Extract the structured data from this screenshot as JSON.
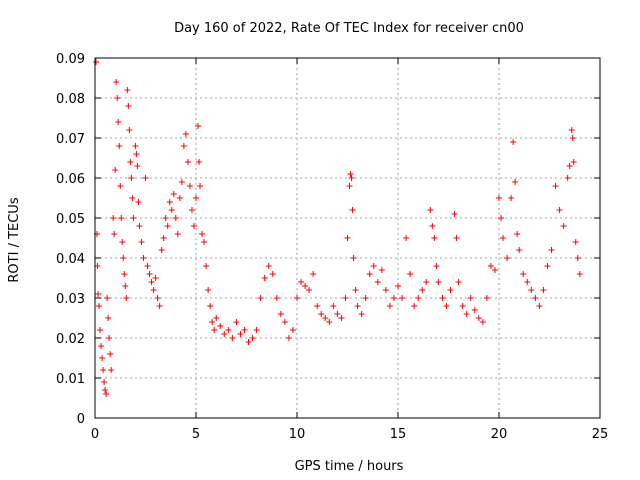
{
  "chart_data": {
    "type": "scatter",
    "title": "Day 160 of 2022, Rate Of TEC Index for receiver cn00",
    "xlabel": "GPS time / hours",
    "ylabel": "ROTI / TECUs",
    "xlim": [
      0,
      25
    ],
    "ylim": [
      0,
      0.09
    ],
    "x_ticks": [
      0,
      5,
      10,
      15,
      20,
      25
    ],
    "y_ticks": [
      0,
      0.01,
      0.02,
      0.03,
      0.04,
      0.05,
      0.06,
      0.07,
      0.08,
      0.09
    ],
    "x_tick_labels": [
      "0",
      "5",
      "10",
      "15",
      "20",
      "25"
    ],
    "y_tick_labels": [
      "0",
      "0.01",
      "0.02",
      "0.03",
      "0.04",
      "0.05",
      "0.06",
      "0.07",
      "0.08",
      "0.09"
    ],
    "grid": true,
    "marker": "+",
    "series": [
      {
        "name": "ROTI",
        "color": "#ff0000",
        "points": [
          [
            0.05,
            0.089
          ],
          [
            0.1,
            0.046
          ],
          [
            0.12,
            0.038
          ],
          [
            0.15,
            0.031
          ],
          [
            0.2,
            0.028
          ],
          [
            0.25,
            0.022
          ],
          [
            0.3,
            0.018
          ],
          [
            0.35,
            0.015
          ],
          [
            0.4,
            0.012
          ],
          [
            0.45,
            0.009
          ],
          [
            0.5,
            0.007
          ],
          [
            0.55,
            0.006
          ],
          [
            0.6,
            0.03
          ],
          [
            0.65,
            0.025
          ],
          [
            0.7,
            0.02
          ],
          [
            0.75,
            0.016
          ],
          [
            0.8,
            0.012
          ],
          [
            0.9,
            0.05
          ],
          [
            0.95,
            0.046
          ],
          [
            1.0,
            0.062
          ],
          [
            1.05,
            0.084
          ],
          [
            1.1,
            0.08
          ],
          [
            1.15,
            0.074
          ],
          [
            1.2,
            0.068
          ],
          [
            1.25,
            0.058
          ],
          [
            1.3,
            0.05
          ],
          [
            1.35,
            0.044
          ],
          [
            1.4,
            0.04
          ],
          [
            1.45,
            0.036
          ],
          [
            1.5,
            0.033
          ],
          [
            1.55,
            0.03
          ],
          [
            1.6,
            0.082
          ],
          [
            1.65,
            0.078
          ],
          [
            1.7,
            0.072
          ],
          [
            1.75,
            0.064
          ],
          [
            1.8,
            0.06
          ],
          [
            1.85,
            0.055
          ],
          [
            1.9,
            0.05
          ],
          [
            2.0,
            0.068
          ],
          [
            2.05,
            0.066
          ],
          [
            2.1,
            0.063
          ],
          [
            2.15,
            0.054
          ],
          [
            2.2,
            0.048
          ],
          [
            2.3,
            0.044
          ],
          [
            2.4,
            0.04
          ],
          [
            2.5,
            0.06
          ],
          [
            2.6,
            0.038
          ],
          [
            2.7,
            0.036
          ],
          [
            2.8,
            0.034
          ],
          [
            2.9,
            0.032
          ],
          [
            3.0,
            0.035
          ],
          [
            3.1,
            0.03
          ],
          [
            3.2,
            0.028
          ],
          [
            3.3,
            0.042
          ],
          [
            3.4,
            0.045
          ],
          [
            3.5,
            0.05
          ],
          [
            3.6,
            0.048
          ],
          [
            3.7,
            0.054
          ],
          [
            3.8,
            0.052
          ],
          [
            3.9,
            0.056
          ],
          [
            4.0,
            0.05
          ],
          [
            4.1,
            0.046
          ],
          [
            4.2,
            0.055
          ],
          [
            4.3,
            0.059
          ],
          [
            4.4,
            0.068
          ],
          [
            4.5,
            0.071
          ],
          [
            4.6,
            0.064
          ],
          [
            4.7,
            0.058
          ],
          [
            4.8,
            0.052
          ],
          [
            4.9,
            0.048
          ],
          [
            5.0,
            0.055
          ],
          [
            5.1,
            0.073
          ],
          [
            5.15,
            0.064
          ],
          [
            5.2,
            0.058
          ],
          [
            5.3,
            0.046
          ],
          [
            5.4,
            0.044
          ],
          [
            5.5,
            0.038
          ],
          [
            5.6,
            0.032
          ],
          [
            5.7,
            0.028
          ],
          [
            5.8,
            0.024
          ],
          [
            5.9,
            0.022
          ],
          [
            6.0,
            0.025
          ],
          [
            6.2,
            0.023
          ],
          [
            6.4,
            0.021
          ],
          [
            6.6,
            0.022
          ],
          [
            6.8,
            0.02
          ],
          [
            7.0,
            0.024
          ],
          [
            7.2,
            0.021
          ],
          [
            7.4,
            0.022
          ],
          [
            7.6,
            0.019
          ],
          [
            7.8,
            0.02
          ],
          [
            8.0,
            0.022
          ],
          [
            8.2,
            0.03
          ],
          [
            8.4,
            0.035
          ],
          [
            8.6,
            0.038
          ],
          [
            8.8,
            0.036
          ],
          [
            9.0,
            0.03
          ],
          [
            9.2,
            0.026
          ],
          [
            9.4,
            0.024
          ],
          [
            9.6,
            0.02
          ],
          [
            9.8,
            0.022
          ],
          [
            10.0,
            0.03
          ],
          [
            10.2,
            0.034
          ],
          [
            10.4,
            0.033
          ],
          [
            10.6,
            0.032
          ],
          [
            10.8,
            0.036
          ],
          [
            11.0,
            0.028
          ],
          [
            11.2,
            0.026
          ],
          [
            11.4,
            0.025
          ],
          [
            11.6,
            0.024
          ],
          [
            11.8,
            0.028
          ],
          [
            12.0,
            0.026
          ],
          [
            12.2,
            0.025
          ],
          [
            12.4,
            0.03
          ],
          [
            12.5,
            0.045
          ],
          [
            12.6,
            0.058
          ],
          [
            12.65,
            0.061
          ],
          [
            12.7,
            0.06
          ],
          [
            12.75,
            0.052
          ],
          [
            12.8,
            0.04
          ],
          [
            12.9,
            0.032
          ],
          [
            13.0,
            0.028
          ],
          [
            13.2,
            0.026
          ],
          [
            13.4,
            0.03
          ],
          [
            13.6,
            0.036
          ],
          [
            13.8,
            0.038
          ],
          [
            14.0,
            0.034
          ],
          [
            14.2,
            0.037
          ],
          [
            14.4,
            0.032
          ],
          [
            14.6,
            0.028
          ],
          [
            14.8,
            0.03
          ],
          [
            15.0,
            0.033
          ],
          [
            15.2,
            0.03
          ],
          [
            15.4,
            0.045
          ],
          [
            15.6,
            0.036
          ],
          [
            15.8,
            0.028
          ],
          [
            16.0,
            0.03
          ],
          [
            16.2,
            0.032
          ],
          [
            16.4,
            0.034
          ],
          [
            16.6,
            0.052
          ],
          [
            16.7,
            0.048
          ],
          [
            16.8,
            0.045
          ],
          [
            16.9,
            0.038
          ],
          [
            17.0,
            0.034
          ],
          [
            17.2,
            0.03
          ],
          [
            17.4,
            0.028
          ],
          [
            17.6,
            0.032
          ],
          [
            17.8,
            0.051
          ],
          [
            17.9,
            0.045
          ],
          [
            18.0,
            0.034
          ],
          [
            18.2,
            0.028
          ],
          [
            18.4,
            0.026
          ],
          [
            18.6,
            0.03
          ],
          [
            18.8,
            0.027
          ],
          [
            19.0,
            0.025
          ],
          [
            19.2,
            0.024
          ],
          [
            19.4,
            0.03
          ],
          [
            19.6,
            0.038
          ],
          [
            19.8,
            0.037
          ],
          [
            20.0,
            0.055
          ],
          [
            20.1,
            0.05
          ],
          [
            20.2,
            0.045
          ],
          [
            20.4,
            0.04
          ],
          [
            20.6,
            0.055
          ],
          [
            20.7,
            0.069
          ],
          [
            20.8,
            0.059
          ],
          [
            20.9,
            0.046
          ],
          [
            21.0,
            0.042
          ],
          [
            21.2,
            0.036
          ],
          [
            21.4,
            0.034
          ],
          [
            21.6,
            0.032
          ],
          [
            21.8,
            0.03
          ],
          [
            22.0,
            0.028
          ],
          [
            22.2,
            0.032
          ],
          [
            22.4,
            0.038
          ],
          [
            22.6,
            0.042
          ],
          [
            22.8,
            0.058
          ],
          [
            23.0,
            0.052
          ],
          [
            23.2,
            0.048
          ],
          [
            23.4,
            0.06
          ],
          [
            23.5,
            0.063
          ],
          [
            23.6,
            0.072
          ],
          [
            23.65,
            0.07
          ],
          [
            23.7,
            0.064
          ],
          [
            23.8,
            0.044
          ],
          [
            23.9,
            0.04
          ],
          [
            24.0,
            0.036
          ]
        ]
      }
    ]
  }
}
